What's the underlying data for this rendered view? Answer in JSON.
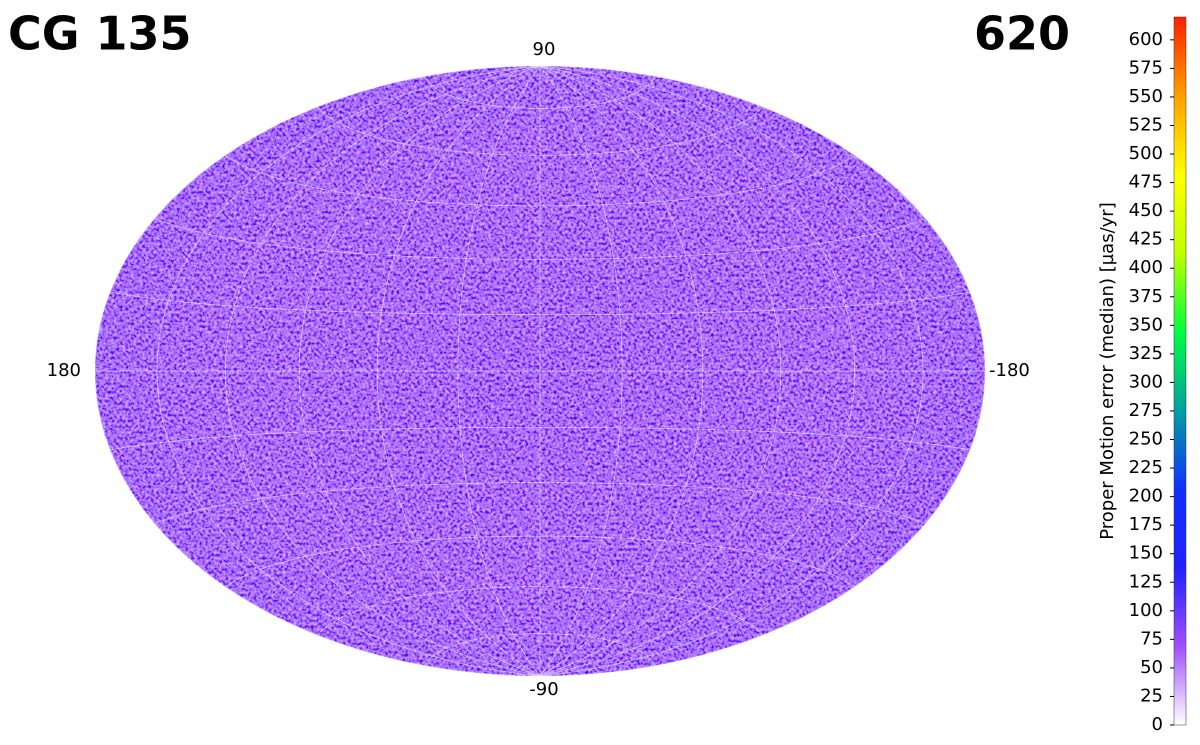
{
  "chart_data": {
    "type": "skymap",
    "title": "CG 135",
    "xlim": [
      180,
      -180
    ],
    "xticks": [
      180,
      -180
    ],
    "ylim": [
      -90,
      90
    ],
    "yticks": [
      90,
      -90
    ],
    "colorbar": {
      "label": "Proper Motion error (median) [µas/yr]",
      "lim": [
        0,
        620
      ],
      "ticks": [
        0,
        25,
        50,
        75,
        100,
        125,
        150,
        175,
        200,
        225,
        250,
        275,
        300,
        325,
        350,
        375,
        400,
        425,
        450,
        475,
        500,
        525,
        550,
        575,
        600
      ],
      "colors": [
        "#ffffff",
        "#a050ff",
        "#2020ff",
        "#1030ff",
        "#00a0a0",
        "#00ff40",
        "#c0ff00",
        "#ffff00",
        "#ffa000",
        "#ff2000"
      ]
    }
  }
}
